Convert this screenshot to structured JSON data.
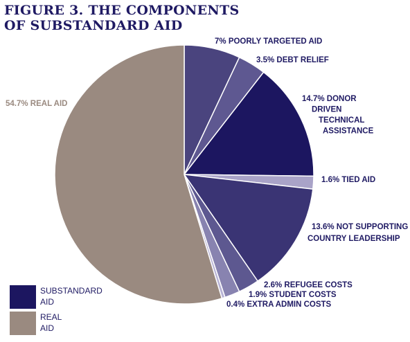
{
  "title_lines": [
    "FIGURE 3. THE COMPONENTS",
    "OF SUBSTANDARD AID"
  ],
  "chart_data": {
    "type": "pie",
    "slices": [
      {
        "value": 7.0,
        "label_lines": [
          "7% POORLY TARGETED AID"
        ],
        "color": "#4a447e",
        "group": "substandard"
      },
      {
        "value": 3.5,
        "label_lines": [
          "3.5% DEBT RELIEF"
        ],
        "color": "#5e5891",
        "group": "substandard"
      },
      {
        "value": 14.7,
        "label_lines": [
          "14.7% DONOR",
          "DRIVEN",
          "TECHNICAL",
          "ASSISTANCE"
        ],
        "color": "#1c1660",
        "group": "substandard"
      },
      {
        "value": 1.6,
        "label_lines": [
          "1.6% TIED AID"
        ],
        "color": "#a9a3c8",
        "group": "substandard"
      },
      {
        "value": 13.6,
        "label_lines": [
          "13.6% NOT SUPPORTING",
          "COUNTRY LEADERSHIP"
        ],
        "color": "#3a3474",
        "group": "substandard"
      },
      {
        "value": 2.6,
        "label_lines": [
          "2.6% REFUGEE COSTS"
        ],
        "color": "#5d5890",
        "group": "substandard"
      },
      {
        "value": 1.9,
        "label_lines": [
          "1.9% STUDENT COSTS"
        ],
        "color": "#8883b0",
        "group": "substandard"
      },
      {
        "value": 0.4,
        "label_lines": [
          "0.4% EXTRA ADMIN COSTS"
        ],
        "color": "#b8b3d5",
        "group": "substandard"
      },
      {
        "value": 54.7,
        "label_lines": [
          "54.7% REAL AID"
        ],
        "color": "#9a8a80",
        "group": "real"
      }
    ],
    "legend": [
      {
        "label_lines": [
          "SUBSTANDARD",
          "AID"
        ],
        "color": "#1c1660"
      },
      {
        "label_lines": [
          "REAL",
          "AID"
        ],
        "color": "#9a8a80"
      }
    ]
  }
}
